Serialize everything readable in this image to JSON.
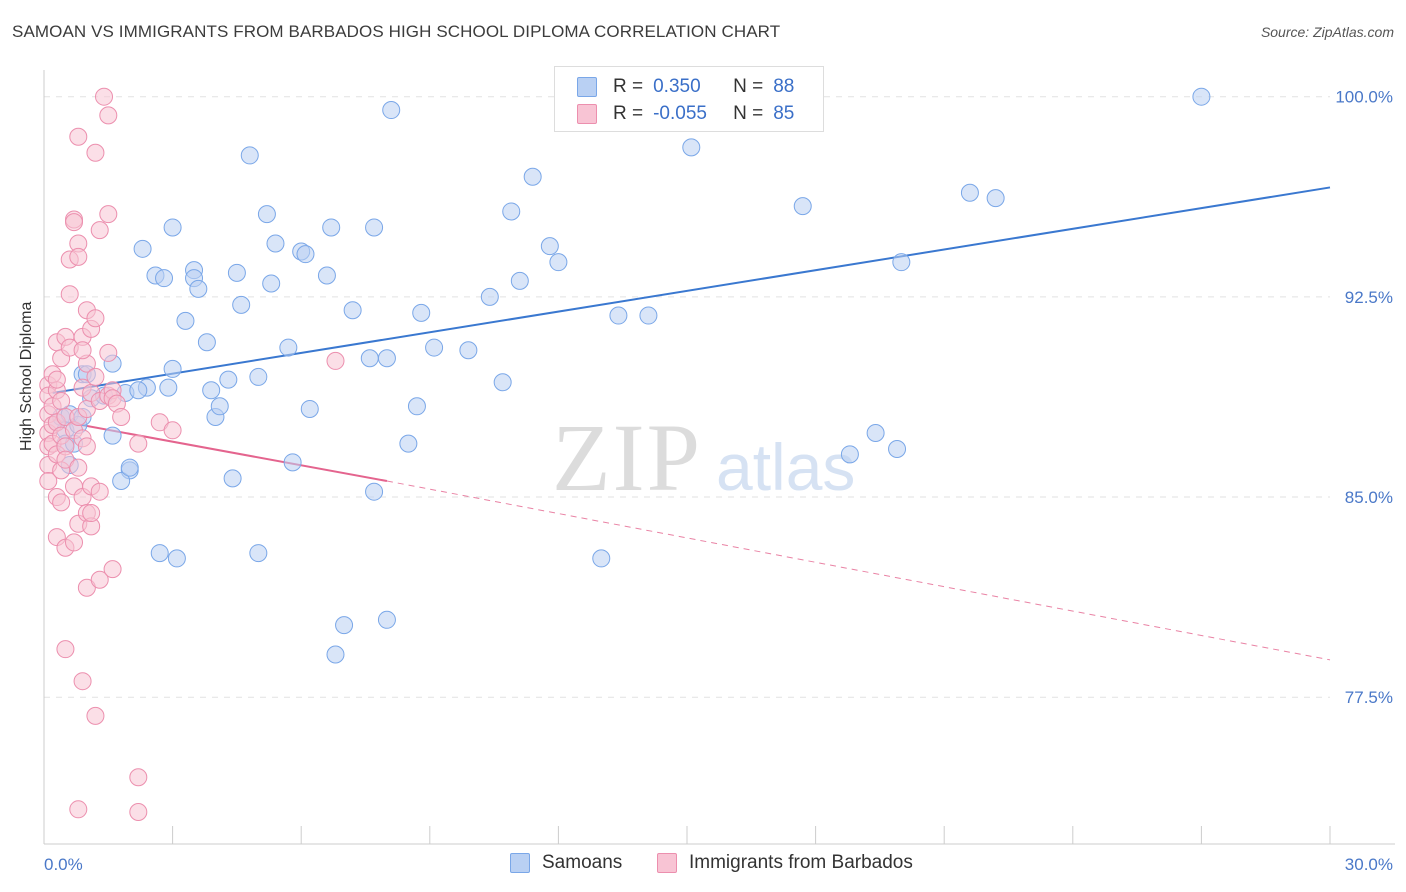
{
  "title": "SAMOAN VS IMMIGRANTS FROM BARBADOS HIGH SCHOOL DIPLOMA CORRELATION CHART",
  "source": "Source: ZipAtlas.com",
  "watermark": {
    "zip": "ZIP",
    "atlas": "atlas"
  },
  "legend_top": [
    {
      "r_label": "R =",
      "r_value": "0.350",
      "n_label": "N =",
      "n_value": "88",
      "color": "#7aa7e8",
      "fill": "#b9d0f3"
    },
    {
      "r_label": "R =",
      "r_value": "-0.055",
      "n_label": "N =",
      "n_value": "85",
      "color": "#ec8fae",
      "fill": "#f8c4d4"
    }
  ],
  "legend_bottom": [
    "Samoans",
    "Immigrants from Barbados"
  ],
  "chart_data": {
    "type": "scatter",
    "xlabel": "",
    "ylabel": "High School Diploma",
    "xlim": [
      0,
      30
    ],
    "ylim": [
      72,
      101
    ],
    "x_tick_labels": [
      "0.0%",
      "30.0%"
    ],
    "y_ticks": [
      77.5,
      85.0,
      92.5,
      100.0
    ],
    "y_tick_labels": [
      "77.5%",
      "85.0%",
      "92.5%",
      "100.0%"
    ],
    "grid": true,
    "series": [
      {
        "name": "Samoans",
        "color": "#3a78d0",
        "fill": "#b9d0f3",
        "trend": {
          "x0": 0.2,
          "y0": 88.9,
          "x1": 30.0,
          "y1": 96.6,
          "dashed_from": null
        },
        "points": [
          [
            0.3,
            87.8
          ],
          [
            0.4,
            88.0
          ],
          [
            0.5,
            87.5
          ],
          [
            0.6,
            88.1
          ],
          [
            0.5,
            87.0
          ],
          [
            0.8,
            87.7
          ],
          [
            0.9,
            89.6
          ],
          [
            1.0,
            89.6
          ],
          [
            1.1,
            88.7
          ],
          [
            1.4,
            88.8
          ],
          [
            1.6,
            90.0
          ],
          [
            1.6,
            87.3
          ],
          [
            1.9,
            88.9
          ],
          [
            2.0,
            86.0
          ],
          [
            1.8,
            85.6
          ],
          [
            2.4,
            89.1
          ],
          [
            2.2,
            89.0
          ],
          [
            2.9,
            89.1
          ],
          [
            3.0,
            89.8
          ],
          [
            2.3,
            94.3
          ],
          [
            2.6,
            93.3
          ],
          [
            2.8,
            93.2
          ],
          [
            3.0,
            95.1
          ],
          [
            3.3,
            91.6
          ],
          [
            3.5,
            93.5
          ],
          [
            3.5,
            93.2
          ],
          [
            3.6,
            92.8
          ],
          [
            3.8,
            90.8
          ],
          [
            3.9,
            89.0
          ],
          [
            4.0,
            88.0
          ],
          [
            4.1,
            88.4
          ],
          [
            4.3,
            89.4
          ],
          [
            4.4,
            85.7
          ],
          [
            4.5,
            93.4
          ],
          [
            4.6,
            92.2
          ],
          [
            4.8,
            97.8
          ],
          [
            5.0,
            89.5
          ],
          [
            5.2,
            95.6
          ],
          [
            5.3,
            93.0
          ],
          [
            5.4,
            94.5
          ],
          [
            5.7,
            90.6
          ],
          [
            5.8,
            86.3
          ],
          [
            6.0,
            94.2
          ],
          [
            6.1,
            94.1
          ],
          [
            6.2,
            88.3
          ],
          [
            6.6,
            93.3
          ],
          [
            6.7,
            95.1
          ],
          [
            7.2,
            92.0
          ],
          [
            7.6,
            90.2
          ],
          [
            7.7,
            95.1
          ],
          [
            8.0,
            90.2
          ],
          [
            8.1,
            99.5
          ],
          [
            8.5,
            87.0
          ],
          [
            8.7,
            88.4
          ],
          [
            8.8,
            91.9
          ],
          [
            9.1,
            90.6
          ],
          [
            9.9,
            90.5
          ],
          [
            10.4,
            92.5
          ],
          [
            10.7,
            89.3
          ],
          [
            10.9,
            95.7
          ],
          [
            11.1,
            93.1
          ],
          [
            11.4,
            97.0
          ],
          [
            11.8,
            94.4
          ],
          [
            12.0,
            93.8
          ],
          [
            13.0,
            82.7
          ],
          [
            13.4,
            91.8
          ],
          [
            14.1,
            91.8
          ],
          [
            15.1,
            98.1
          ],
          [
            15.9,
            100.0
          ],
          [
            17.7,
            95.9
          ],
          [
            18.8,
            86.6
          ],
          [
            19.4,
            87.4
          ],
          [
            19.9,
            86.8
          ],
          [
            20.0,
            93.8
          ],
          [
            21.6,
            96.4
          ],
          [
            22.2,
            96.2
          ],
          [
            27.0,
            100.0
          ],
          [
            3.1,
            82.7
          ],
          [
            2.7,
            82.9
          ],
          [
            5.0,
            82.9
          ],
          [
            7.0,
            80.2
          ],
          [
            8.0,
            80.4
          ],
          [
            6.8,
            79.1
          ],
          [
            7.7,
            85.2
          ],
          [
            2.0,
            86.1
          ],
          [
            0.7,
            87.0
          ],
          [
            0.9,
            88.0
          ],
          [
            0.6,
            86.2
          ]
        ]
      },
      {
        "name": "Immigrants from Barbados",
        "color": "#e4648e",
        "fill": "#f8c4d4",
        "trend": {
          "x0": 0.2,
          "y0": 87.9,
          "x1": 8.0,
          "y1": 85.6,
          "dashed_to_x": 30.0,
          "dashed_to_y": 78.9
        },
        "points": [
          [
            0.1,
            89.2
          ],
          [
            0.1,
            88.8
          ],
          [
            0.1,
            88.1
          ],
          [
            0.1,
            87.4
          ],
          [
            0.1,
            86.9
          ],
          [
            0.1,
            86.2
          ],
          [
            0.1,
            85.6
          ],
          [
            0.2,
            89.6
          ],
          [
            0.2,
            88.4
          ],
          [
            0.2,
            87.7
          ],
          [
            0.2,
            87.0
          ],
          [
            0.3,
            90.8
          ],
          [
            0.3,
            89.0
          ],
          [
            0.3,
            87.8
          ],
          [
            0.3,
            86.6
          ],
          [
            0.3,
            85.0
          ],
          [
            0.3,
            83.5
          ],
          [
            0.4,
            90.2
          ],
          [
            0.4,
            88.6
          ],
          [
            0.4,
            87.3
          ],
          [
            0.4,
            86.0
          ],
          [
            0.4,
            84.8
          ],
          [
            0.5,
            91.0
          ],
          [
            0.5,
            88.0
          ],
          [
            0.5,
            86.9
          ],
          [
            0.5,
            83.1
          ],
          [
            0.5,
            79.3
          ],
          [
            0.5,
            86.4
          ],
          [
            0.6,
            93.9
          ],
          [
            0.6,
            92.6
          ],
          [
            0.6,
            90.6
          ],
          [
            0.7,
            95.4
          ],
          [
            0.7,
            95.3
          ],
          [
            0.7,
            87.5
          ],
          [
            0.7,
            85.4
          ],
          [
            0.7,
            83.3
          ],
          [
            0.8,
            98.5
          ],
          [
            0.8,
            94.5
          ],
          [
            0.8,
            94.0
          ],
          [
            0.8,
            88.0
          ],
          [
            0.8,
            86.1
          ],
          [
            0.8,
            84.0
          ],
          [
            0.8,
            73.3
          ],
          [
            0.9,
            91.0
          ],
          [
            0.9,
            89.1
          ],
          [
            0.9,
            87.2
          ],
          [
            0.9,
            85.0
          ],
          [
            0.9,
            78.1
          ],
          [
            1.0,
            92.0
          ],
          [
            1.0,
            90.0
          ],
          [
            1.0,
            88.3
          ],
          [
            1.0,
            86.9
          ],
          [
            1.0,
            84.4
          ],
          [
            1.0,
            81.6
          ],
          [
            1.1,
            91.3
          ],
          [
            1.1,
            88.9
          ],
          [
            1.1,
            85.4
          ],
          [
            1.1,
            83.9
          ],
          [
            1.2,
            97.9
          ],
          [
            1.2,
            91.7
          ],
          [
            1.2,
            89.5
          ],
          [
            1.2,
            76.8
          ],
          [
            1.3,
            95.0
          ],
          [
            1.3,
            88.6
          ],
          [
            1.3,
            85.2
          ],
          [
            1.3,
            81.9
          ],
          [
            1.4,
            100.0
          ],
          [
            1.5,
            99.3
          ],
          [
            1.5,
            95.6
          ],
          [
            1.5,
            90.4
          ],
          [
            1.5,
            88.8
          ],
          [
            1.6,
            89.0
          ],
          [
            1.6,
            88.7
          ],
          [
            1.6,
            82.3
          ],
          [
            1.7,
            88.5
          ],
          [
            1.8,
            88.0
          ],
          [
            2.2,
            87.0
          ],
          [
            2.2,
            74.5
          ],
          [
            2.2,
            73.2
          ],
          [
            2.7,
            87.8
          ],
          [
            3.0,
            87.5
          ],
          [
            6.8,
            90.1
          ],
          [
            0.9,
            90.5
          ],
          [
            1.1,
            84.4
          ],
          [
            0.3,
            89.4
          ]
        ]
      }
    ]
  }
}
